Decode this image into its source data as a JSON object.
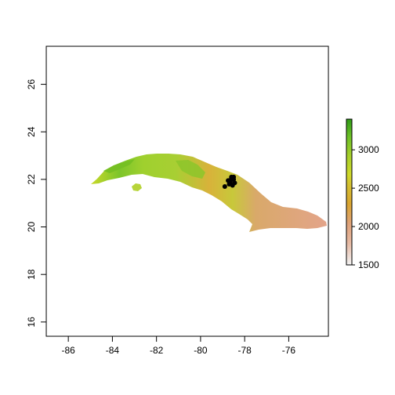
{
  "chart_data": {
    "type": "scatter",
    "title": "",
    "xlabel": "",
    "ylabel": "",
    "xlim": [
      -87,
      -74.2
    ],
    "ylim": [
      15.4,
      27.6
    ],
    "x_ticks": [
      -86,
      -84,
      -82,
      -80,
      -78,
      -76
    ],
    "y_ticks": [
      16,
      18,
      20,
      22,
      24,
      26
    ],
    "x_tick_labels": [
      "-86",
      "-84",
      "-82",
      "-80",
      "-78",
      "-76"
    ],
    "y_tick_labels": [
      "16",
      "18",
      "20",
      "22",
      "24",
      "26"
    ],
    "raster_legend": {
      "placement": "right",
      "range": [
        1500,
        3400
      ],
      "ticks": [
        1500,
        2000,
        2500,
        3000
      ],
      "tick_labels": [
        "1500",
        "2000",
        "2500",
        "3000"
      ],
      "colors": [
        "#f2f2f2",
        "#e6b9a3",
        "#dfa27a",
        "#d9a530",
        "#d4c030",
        "#cfd92a",
        "#a6cf2a",
        "#6cc026",
        "#2f9a16"
      ]
    },
    "raster_region": "Cuba",
    "points": {
      "color": "#000000",
      "x": [
        -78.9,
        -78.75,
        -78.6,
        -78.5,
        -78.45,
        -78.7,
        -78.55,
        -78.6,
        -78.65,
        -78.5
      ],
      "y": [
        21.7,
        21.95,
        22.05,
        22.0,
        21.85,
        21.8,
        21.75,
        22.1,
        21.9,
        22.1
      ]
    }
  }
}
